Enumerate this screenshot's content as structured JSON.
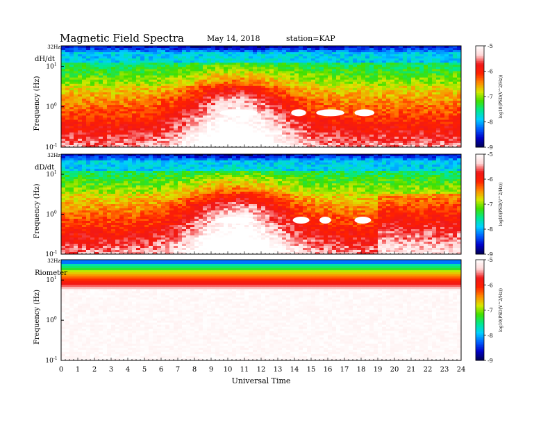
{
  "header": {
    "title": "Magnetic  Field  Spectra",
    "date": "May 14, 2018",
    "station": "station=KAP"
  },
  "chart_data": [
    {
      "type": "heatmap",
      "panel_label": "dH/dt",
      "ylabel": "Frequency  (Hz)",
      "ytick_top": "32Hz",
      "ytick_mid_base": "10",
      "yticks": [
        {
          "base": "10",
          "exp": "1"
        },
        {
          "base": "10",
          "exp": "0"
        },
        {
          "base": "10",
          "exp": "-1"
        }
      ],
      "ylim_hz": [
        0.1,
        32
      ],
      "yscale": "log",
      "xlim_hours": [
        0,
        24
      ],
      "colorbar_label": "log10(PSD(V^2/Hz))",
      "colorbar_ticks": [
        "-5",
        "-6",
        "-7",
        "-8",
        "-9"
      ],
      "colorbar_range": [
        -9,
        -5
      ],
      "saturated_patches_utc_hours": [
        [
          9.5,
          11.8
        ],
        [
          13.8,
          14.7
        ],
        [
          15.3,
          17.0
        ],
        [
          17.6,
          18.8
        ]
      ]
    },
    {
      "type": "heatmap",
      "panel_label": "dD/dt",
      "ylabel": "Frequency  (Hz)",
      "ytick_top": "32Hz",
      "yticks": [
        {
          "base": "10",
          "exp": "1"
        },
        {
          "base": "10",
          "exp": "0"
        },
        {
          "base": "10",
          "exp": "-1"
        }
      ],
      "ylim_hz": [
        0.1,
        32
      ],
      "yscale": "log",
      "xlim_hours": [
        0,
        24
      ],
      "colorbar_label": "log10(PSD(V^2/Hz))",
      "colorbar_ticks": [
        "-5",
        "-6",
        "-7",
        "-8",
        "-9"
      ],
      "colorbar_range": [
        -9,
        -5
      ],
      "saturated_patches_utc_hours": [
        [
          9.3,
          11.6
        ],
        [
          13.9,
          14.9
        ],
        [
          15.5,
          16.2
        ],
        [
          17.6,
          18.6
        ]
      ]
    },
    {
      "type": "heatmap",
      "panel_label": "Riometer",
      "ylabel": "Frequency  (Hz)",
      "ytick_top": "32Hz",
      "yticks": [
        {
          "base": "10",
          "exp": "1"
        },
        {
          "base": "10",
          "exp": "0"
        },
        {
          "base": "10",
          "exp": "-1"
        }
      ],
      "ylim_hz": [
        0.1,
        32
      ],
      "yscale": "log",
      "xlim_hours": [
        0,
        24
      ],
      "colorbar_label": "log10(PSD(V^2/Hz))",
      "colorbar_ticks": [
        "-5",
        "-6",
        "-7",
        "-8",
        "-9"
      ],
      "colorbar_range": [
        -9,
        -5
      ]
    }
  ],
  "x_axis": {
    "label": "Universal Time",
    "ticks": [
      "0",
      "1",
      "2",
      "3",
      "4",
      "5",
      "6",
      "7",
      "8",
      "9",
      "10",
      "11",
      "12",
      "13",
      "14",
      "15",
      "16",
      "17",
      "18",
      "19",
      "20",
      "21",
      "22",
      "23",
      "24"
    ]
  },
  "colorscale": [
    "#000050",
    "#0000c8",
    "#0060ff",
    "#00d0ff",
    "#00e890",
    "#40e000",
    "#d8e800",
    "#ff8800",
    "#ff2000",
    "#f01818",
    "#ffd8d8",
    "#ffffff"
  ]
}
